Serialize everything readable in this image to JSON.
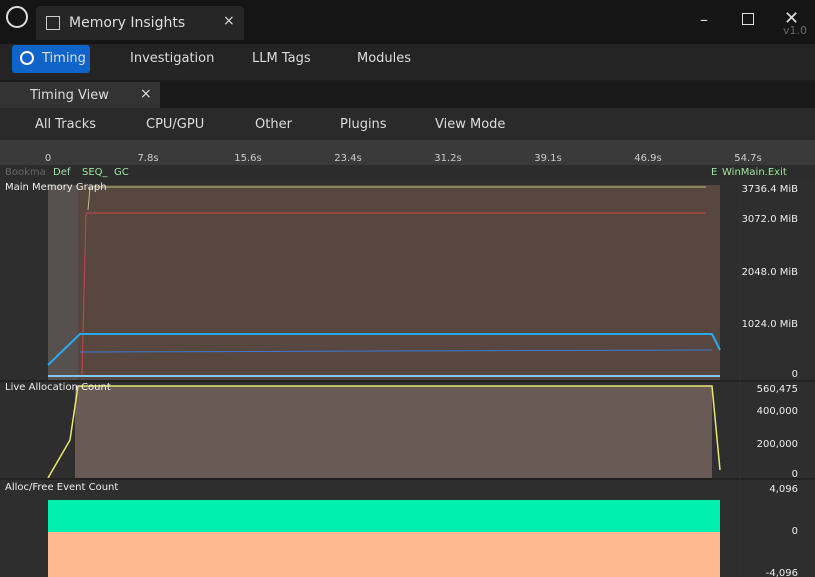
{
  "window": {
    "title": "Memory Insights",
    "version": "v1.0"
  },
  "tabs": [
    "Timing",
    "Investigation",
    "LLM Tags",
    "Modules"
  ],
  "panel": {
    "title": "Timing View"
  },
  "toolbar": [
    "All Tracks",
    "CPU/GPU",
    "Other",
    "Plugins",
    "View Mode"
  ],
  "ruler": {
    "labels": [
      "0",
      "7.8s",
      "15.6s",
      "23.4s",
      "31.2s",
      "39.1s",
      "46.9s",
      "54.7s"
    ]
  },
  "markers": [
    "Bookma",
    "Def",
    "SEQ_",
    "GC",
    "E",
    "WinMain.Exit"
  ],
  "tracks": [
    {
      "name": "Main Memory Graph",
      "scale": [
        "3736.4 MiB",
        "3072.0 MiB",
        "2048.0 MiB",
        "1024.0 MiB",
        "0"
      ]
    },
    {
      "name": "Live Allocation Count",
      "scale": [
        "560,475",
        "400,000",
        "200,000",
        "0"
      ]
    },
    {
      "name": "Alloc/Free Event Count",
      "scale": [
        "4,096",
        "0",
        "-4,096"
      ]
    }
  ]
}
